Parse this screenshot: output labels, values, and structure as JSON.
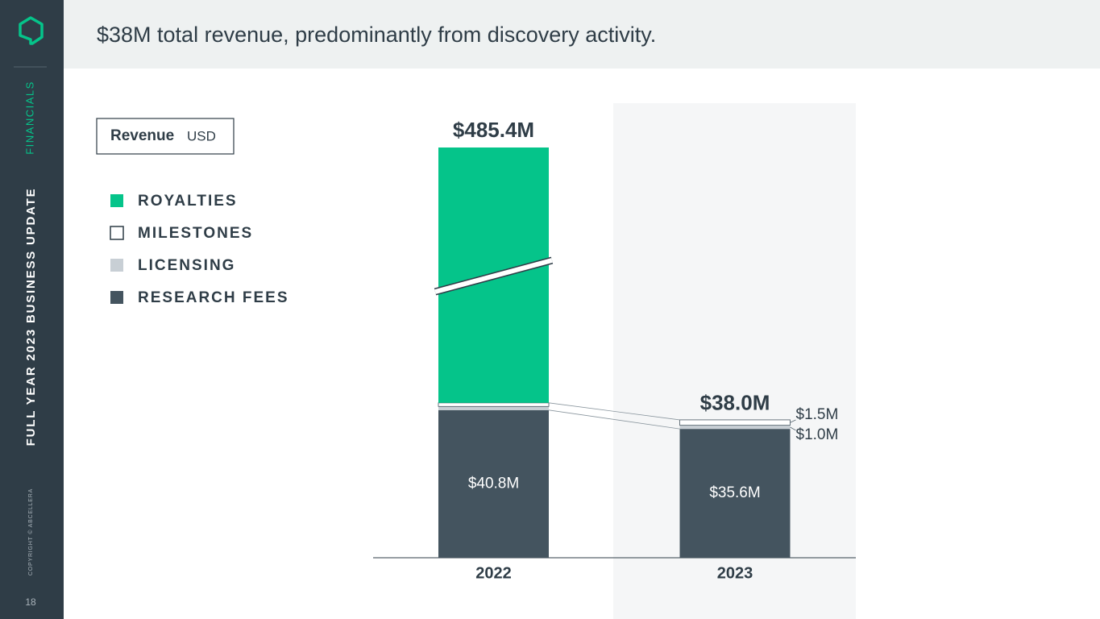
{
  "slide": {
    "section": "FINANCIALS",
    "deck": "FULL YEAR 2023 BUSINESS UPDATE",
    "copyright": "COPYRIGHT © ABCELLERA",
    "page": "18",
    "legend_title": "Revenue",
    "legend_unit": "USD"
  },
  "chart_data": {
    "type": "stacked_bar",
    "title": "$38M total revenue, predominantly from discovery activity.",
    "categories": [
      "2022",
      "2023"
    ],
    "series": [
      {
        "name": "RESEARCH FEES",
        "color": "#44545f",
        "values": [
          40.8,
          35.6
        ],
        "value_labels": [
          "$40.8M",
          "$35.6M"
        ]
      },
      {
        "name": "LICENSING",
        "color": "#c8cfd5",
        "values": [
          1.0,
          1.0
        ],
        "value_labels": [
          null,
          "$1.0M"
        ]
      },
      {
        "name": "MILESTONES",
        "color": "#ffffff",
        "values": [
          1.0,
          1.5
        ],
        "value_labels": [
          null,
          "$1.5M"
        ]
      },
      {
        "name": "ROYALTIES",
        "color": "#05c48a",
        "values": [
          442.6,
          null
        ],
        "value_labels": [
          null,
          null
        ]
      }
    ],
    "totals": {
      "values": [
        485.4,
        38.0
      ],
      "value_labels": [
        "$485.4M",
        "$38.0M"
      ]
    },
    "axis_break": true
  }
}
